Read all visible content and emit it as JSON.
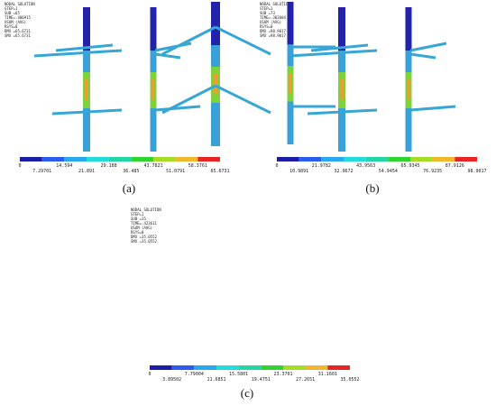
{
  "panels": [
    {
      "header": [
        "NODAL SOLUTION",
        "STEP=1",
        "SUB =65",
        "TIME=.406915",
        "USUM     (AVG)",
        "RSYS=0",
        "DMX =65.6731",
        "SMX =65.6731"
      ],
      "colorbar_top": [
        "0",
        "14.594",
        "29.188",
        "43.7821",
        "58.3761"
      ],
      "colorbar_bottom": [
        "7.29701",
        "21.891",
        "36.485",
        "51.0791",
        "65.6731"
      ],
      "caption": "(a)"
    },
    {
      "header": [
        "NODAL SOLUTION",
        "STEP=1",
        "SUB =73",
        "TIME=.302004",
        "USUM     (AVG)",
        "RSYS=0",
        "DMX =98.9017",
        "SMX =98.9017"
      ],
      "colorbar_top": [
        "0",
        "21.9782",
        "43.9563",
        "65.9345",
        "87.9126"
      ],
      "colorbar_bottom": [
        "10.9891",
        "32.9672",
        "54.9454",
        "76.9235",
        "98.9017"
      ],
      "caption": "(b)"
    },
    {
      "header": [
        "NODAL SOLUTION",
        "STEP=1",
        "SUB =35",
        "TIME=.423611",
        "USUM     (AVG)",
        "RSYS=0",
        "DMX =35.0552",
        "SMX =35.0552"
      ],
      "colorbar_top": [
        "0",
        "7.79004",
        "15.5801",
        "23.3701",
        "31.1601"
      ],
      "colorbar_bottom": [
        "3.89502",
        "11.6851",
        "19.4751",
        "27.2651",
        "35.0552"
      ],
      "caption": "(c)"
    }
  ]
}
